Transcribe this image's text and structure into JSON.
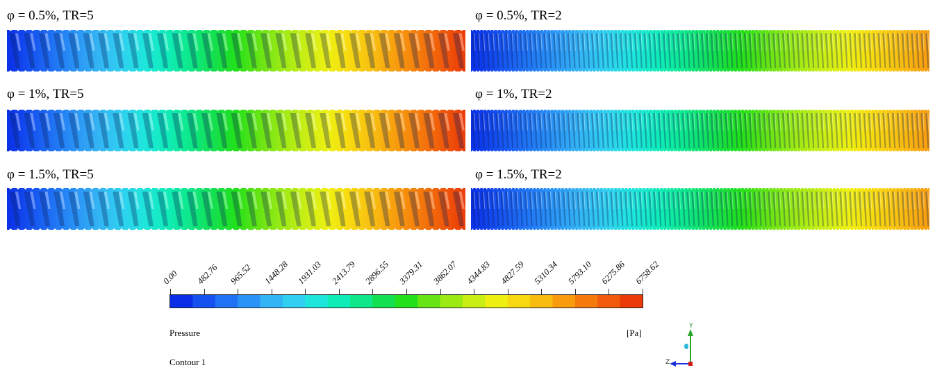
{
  "panels": [
    {
      "label": "φ = 0.5%, TR=5",
      "twist": 5
    },
    {
      "label": "φ = 0.5%, TR=2",
      "twist": 2
    },
    {
      "label": "φ = 1%, TR=5",
      "twist": 5
    },
    {
      "label": "φ = 1%, TR=2",
      "twist": 2
    },
    {
      "label": "φ = 1.5%, TR=5",
      "twist": 5
    },
    {
      "label": "φ = 1.5%, TR=2",
      "twist": 2
    }
  ],
  "legend": {
    "variable": "Pressure",
    "unit": "[Pa]",
    "contour_name": "Contour 1",
    "ticks": [
      "0.00",
      "482.76",
      "965.52",
      "1448.28",
      "1931.03",
      "2413.79",
      "2896.55",
      "3379.31",
      "3862.07",
      "4344.83",
      "4827.59",
      "5310.34",
      "5793.10",
      "6275.86",
      "6758.62"
    ],
    "colors": [
      "#0a2ee8",
      "#1550f0",
      "#1f72f4",
      "#2a94f6",
      "#33b4f4",
      "#2fd0f0",
      "#1ee6dc",
      "#10ecb8",
      "#0ee888",
      "#13e050",
      "#22e01a",
      "#66e414",
      "#9cea14",
      "#c8ee14",
      "#eef012",
      "#f8d810",
      "#f8bc10",
      "#f89c0e",
      "#f47a0c",
      "#f05a0a",
      "#ec3a08"
    ]
  },
  "axes": {
    "y_label": "Y",
    "z_label": "Z"
  }
}
